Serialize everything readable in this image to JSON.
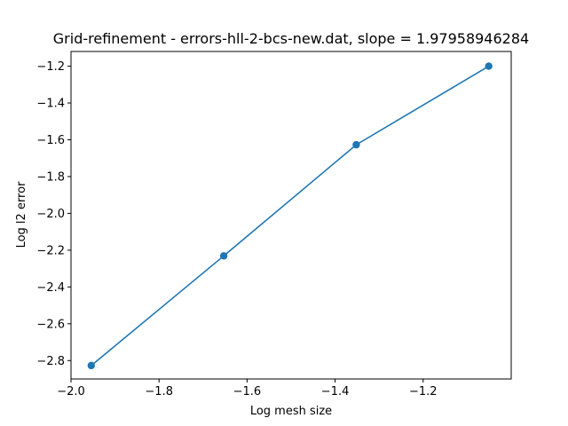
{
  "chart_data": {
    "type": "line",
    "title": "Grid-refinement - errors-hll-2-bcs-new.dat, slope = 1.97958946284",
    "xlabel": "Log mesh size",
    "ylabel": "Log l2 error",
    "x": [
      -1.954,
      -1.653,
      -1.352,
      -1.051
    ],
    "series": [
      {
        "values": [
          -2.827,
          -2.231,
          -1.627,
          -1.2
        ],
        "color": "#1f77b4",
        "marker": "circle"
      }
    ],
    "xlim": [
      -2.0,
      -1.0
    ],
    "ylim": [
      -2.9,
      -1.12
    ],
    "xticks": [
      -2.0,
      -1.8,
      -1.6,
      -1.4,
      -1.2
    ],
    "xtick_labels": [
      "−2.0",
      "−1.8",
      "−1.6",
      "−1.4",
      "−1.2"
    ],
    "yticks": [
      -2.8,
      -2.6,
      -2.4,
      -2.2,
      -2.0,
      -1.8,
      -1.6,
      -1.4,
      -1.2
    ],
    "ytick_labels": [
      "−2.8",
      "−2.6",
      "−2.4",
      "−2.2",
      "−2.0",
      "−1.8",
      "−1.6",
      "−1.4",
      "−1.2"
    ],
    "grid": false,
    "legend": "none"
  }
}
